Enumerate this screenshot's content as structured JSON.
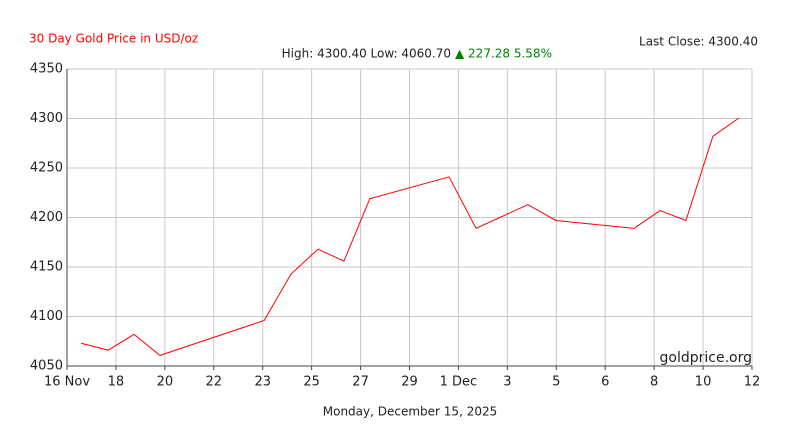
{
  "chart_data": {
    "type": "line",
    "title": "30 Day Gold Price in USD/oz",
    "last_close": "Last Close: 4300.40",
    "high_low": "High: 4300.40 Low: 4060.70",
    "change": "▲ 227.28 5.58%",
    "watermark": "goldprice.org",
    "date_label": "Monday, December 15, 2025",
    "x": [
      0.29,
      0.84,
      1.37,
      1.9,
      4.03,
      4.58,
      5.13,
      5.66,
      6.19,
      7.81,
      8.36,
      9.42,
      9.99,
      11.59,
      12.12,
      12.65,
      13.2,
      13.73
    ],
    "series": [
      {
        "color": "#ff0000",
        "values": [
          4073,
          4066,
          4082,
          4060.7,
          4096,
          4143,
          4168,
          4156,
          4219,
          4241,
          4189,
          4213,
          4197,
          4189,
          4207,
          4197,
          4282,
          4300.4
        ]
      }
    ],
    "xlim": [
      0,
      14
    ],
    "xticks": [
      {
        "value": 0,
        "label": "16 Nov"
      },
      {
        "value": 1,
        "label": "18"
      },
      {
        "value": 2,
        "label": "20"
      },
      {
        "value": 3,
        "label": "22"
      },
      {
        "value": 4,
        "label": "23"
      },
      {
        "value": 5,
        "label": "25"
      },
      {
        "value": 6,
        "label": "27"
      },
      {
        "value": 7,
        "label": "29"
      },
      {
        "value": 8,
        "label": "1 Dec"
      },
      {
        "value": 9,
        "label": "3"
      },
      {
        "value": 10,
        "label": "5"
      },
      {
        "value": 11,
        "label": "6"
      },
      {
        "value": 12,
        "label": "8"
      },
      {
        "value": 13,
        "label": "10"
      },
      {
        "value": 14,
        "label": "12"
      }
    ],
    "ylim": [
      4050,
      4350
    ],
    "yticks": [
      4050,
      4100,
      4150,
      4200,
      4250,
      4300,
      4350
    ],
    "grid": true
  }
}
